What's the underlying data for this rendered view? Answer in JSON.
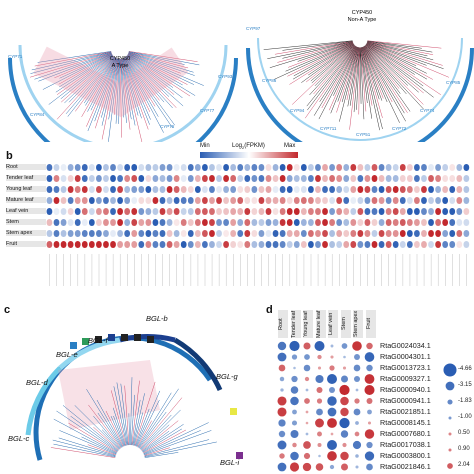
{
  "panel_a": {
    "left_tree_title": "CYP450\nA Type",
    "right_tree_title": "CYP450\nNon-A Type",
    "left_labels": [
      "CYP71",
      "CYP84",
      "CYP76",
      "CYP77",
      "CYP93"
    ],
    "right_labels": [
      "CYP97",
      "CYP86",
      "CYP94",
      "CYP711",
      "CYP51",
      "CYP72",
      "CYP74",
      "CYP85"
    ]
  },
  "panel_b": {
    "label": "b",
    "legend": {
      "min": "Min",
      "title": "Log2(FPKM)",
      "max": "Max"
    },
    "rows": [
      "Root",
      "Tender leaf",
      "Young leaf",
      "Mature leaf",
      "Leaf vein",
      "Stem",
      "Stem apex",
      "Fruit"
    ],
    "column_count": 60
  },
  "panel_c": {
    "label": "c",
    "clades": [
      "BGL-b",
      "BGL-f",
      "BGL-e",
      "BGL-d",
      "BGL-c",
      "BGL-g",
      "BGL-i"
    ]
  },
  "panel_d": {
    "label": "d",
    "columns": [
      "Root",
      "Tender leaf",
      "Young leaf",
      "Mature leaf",
      "Leaf vein",
      "Stem",
      "Stem apex",
      "Fruit"
    ],
    "genes": [
      "RtaG0024034.1",
      "RtaG0004301.1",
      "RtaG0013723.1",
      "RtaG0009327.1",
      "RtaG0000940.1",
      "RtaG0000941.1",
      "RtaG0021851.1",
      "RtaG0008145.1",
      "RtaG0007680.1",
      "RtaG0017038.1",
      "RtaG0003800.1",
      "RtaG0021846.1"
    ],
    "scale_values": [
      "-4.66",
      "-3.15",
      "-1.83",
      "-1.00",
      "0.50",
      "0.90",
      "2.04"
    ],
    "colors": {
      "low": "#2a5db3",
      "mid": "#f5f5f5",
      "high": "#c2282d"
    }
  }
}
